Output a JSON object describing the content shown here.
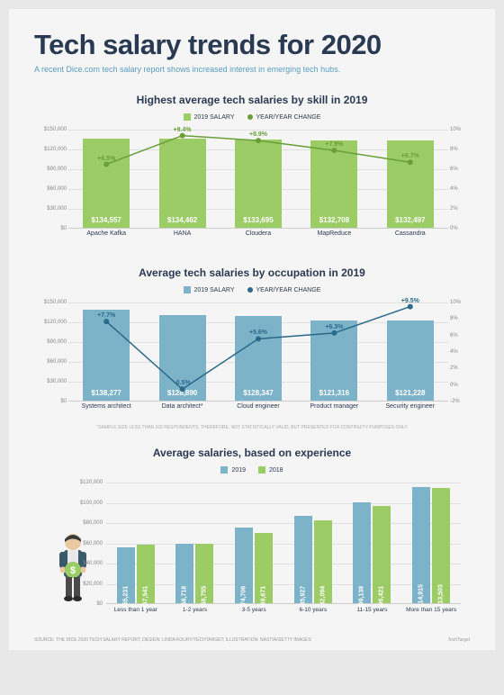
{
  "header": {
    "title": "Tech salary trends for 2020",
    "subtitle": "A recent Dice.com tech salary report shows increased interest in emerging tech hubs."
  },
  "chart1": {
    "title": "Highest average tech salaries by skill in 2019",
    "type": "bar+line",
    "legend": {
      "bar": "2019 SALARY",
      "line": "YEAR/YEAR CHANGE"
    },
    "bar_color": "#9ccc65",
    "line_color": "#689f38",
    "ylim": [
      0,
      150000
    ],
    "ytick_step": 30000,
    "yticks": [
      "$0",
      "$30,000",
      "$60,000",
      "$90,000",
      "$120,000",
      "$150,000"
    ],
    "y2lim": [
      0,
      10
    ],
    "y2ticks": [
      "0%",
      "2%",
      "4%",
      "6%",
      "8%",
      "10%"
    ],
    "categories": [
      "Apache Kafka",
      "HANA",
      "Cloudera",
      "MapReduce",
      "Cassandra"
    ],
    "salaries": [
      134557,
      134462,
      133695,
      132708,
      132497
    ],
    "salary_labels": [
      "$134,557",
      "$134,462",
      "$133,695",
      "$132,708",
      "$132,497"
    ],
    "changes": [
      6.5,
      9.4,
      8.9,
      7.9,
      6.7
    ],
    "change_labels": [
      "+6.5%",
      "+9.4%",
      "+8.9%",
      "+7.9%",
      "+6.7%"
    ]
  },
  "chart2": {
    "title": "Average tech salaries by occupation in 2019",
    "type": "bar+line",
    "legend": {
      "bar": "2019 SALARY",
      "line": "YEAR/YEAR CHANGE"
    },
    "bar_color": "#7cb3c9",
    "line_color": "#2a6a8a",
    "ylim": [
      0,
      150000
    ],
    "ytick_step": 30000,
    "yticks": [
      "$0",
      "$30,000",
      "$60,000",
      "$90,000",
      "$120,000",
      "$150,000"
    ],
    "y2lim": [
      -2,
      10
    ],
    "y2ticks": [
      "-2%",
      "0%",
      "2%",
      "4%",
      "6%",
      "8%",
      "10%"
    ],
    "categories": [
      "Systems architect",
      "Data architect*",
      "Cloud engineer",
      "Product manager",
      "Security engineer"
    ],
    "salaries": [
      138277,
      128890,
      128347,
      121316,
      121228
    ],
    "salary_labels": [
      "$138,277",
      "$128,890",
      "$128,347",
      "$121,316",
      "$121,228"
    ],
    "changes": [
      7.7,
      -0.5,
      5.6,
      6.3,
      9.5
    ],
    "change_labels": [
      "+7.7%",
      "-0.5%",
      "+5.6%",
      "+6.3%",
      "+9.5%"
    ],
    "footnote": "*SAMPLE SIZE LESS THAN 100 RESPONDENTS; THEREFORE, NOT STATISTICALLY VALID, BUT PRESENTED FOR CONTINUITY PURPOSES ONLY"
  },
  "chart3": {
    "title": "Average salaries, based on experience",
    "type": "grouped-bar",
    "legend": {
      "a": "2019",
      "b": "2018"
    },
    "color_a": "#7cb3c9",
    "color_b": "#9ccc65",
    "ylim": [
      0,
      120000
    ],
    "ytick_step": 20000,
    "yticks": [
      "$0",
      "$20,000",
      "$40,000",
      "$60,000",
      "$80,000",
      "$100,000",
      "$120,000"
    ],
    "categories": [
      "Less than 1 year",
      "1-2 years",
      "3-5 years",
      "6-10 years",
      "11-15 years",
      "More than 15 years"
    ],
    "values_a": [
      55231,
      58718,
      74706,
      85927,
      99138,
      114915
    ],
    "values_b": [
      57541,
      58755,
      69671,
      82094,
      96421,
      113503
    ],
    "labels_a": [
      "$55,231",
      "$58,718",
      "$74,706",
      "$85,927",
      "$99,138",
      "$114,915"
    ],
    "labels_b": [
      "$57,541",
      "$58,755",
      "$69,671",
      "$82,094",
      "$96,421",
      "$113,503"
    ]
  },
  "footer": {
    "source": "SOURCE: THE DICE 2020 TECH SALARY REPORT, DESIGN: LINDA KOURY/TECHTARGET; ILLUSTRATION: NASTIA/GETTY IMAGES",
    "brand": "TechTarget"
  }
}
